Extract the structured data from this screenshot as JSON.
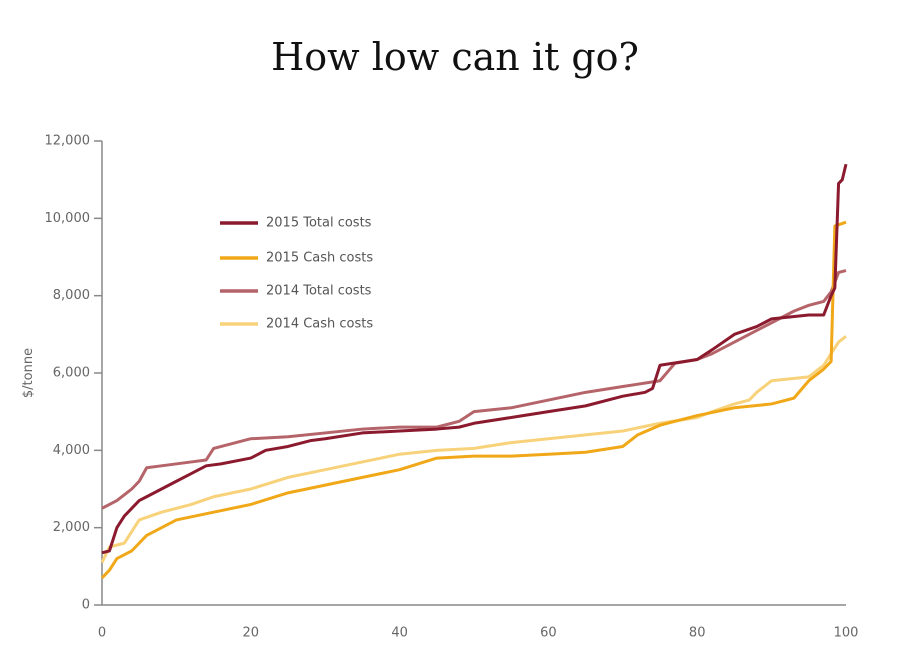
{
  "chart_data": {
    "type": "line",
    "title": "How low can it go?",
    "y_label": "$/tonne",
    "xlim": [
      0,
      100
    ],
    "xticks": [
      0,
      20,
      40,
      60,
      80,
      100
    ],
    "ylim": [
      0,
      12000
    ],
    "yticks": [
      0,
      {
        "value": 2000,
        "label": "2,000"
      },
      {
        "value": 4000,
        "label": "4,000"
      },
      {
        "value": 6000,
        "label": "6,000"
      },
      {
        "value": 8000,
        "label": "8,000"
      },
      {
        "value": 10000,
        "label": "10,000"
      },
      {
        "value": 12000,
        "label": "12,000"
      }
    ],
    "grid": false,
    "legend": "upper left",
    "series": [
      {
        "name": "2015 Total costs",
        "color": "#8b1a2e",
        "x": [
          0,
          1,
          2,
          3,
          4,
          5,
          6,
          8,
          10,
          12,
          14,
          16,
          20,
          22,
          25,
          28,
          30,
          35,
          40,
          45,
          48,
          50,
          55,
          60,
          65,
          70,
          73,
          74,
          75,
          80,
          82,
          85,
          88,
          90,
          95,
          97,
          98,
          98.5,
          99,
          99.5,
          100
        ],
        "values": [
          1350,
          1400,
          2000,
          2300,
          2500,
          2700,
          2800,
          3000,
          3200,
          3400,
          3600,
          3650,
          3800,
          4000,
          4100,
          4250,
          4300,
          4450,
          4500,
          4550,
          4600,
          4700,
          4850,
          5000,
          5150,
          5400,
          5500,
          5600,
          6200,
          6350,
          6600,
          7000,
          7200,
          7400,
          7500,
          7500,
          8000,
          8200,
          10900,
          11000,
          11400
        ]
      },
      {
        "name": "2015 Cash costs",
        "color": "#f0a818",
        "x": [
          0,
          1,
          2,
          4,
          5,
          6,
          8,
          10,
          15,
          20,
          25,
          30,
          35,
          40,
          45,
          50,
          55,
          60,
          65,
          70,
          72,
          75,
          80,
          85,
          90,
          93,
          95,
          97,
          98,
          98.5,
          100
        ],
        "values": [
          700,
          900,
          1200,
          1400,
          1600,
          1800,
          2000,
          2200,
          2400,
          2600,
          2900,
          3100,
          3300,
          3500,
          3800,
          3850,
          3850,
          3900,
          3950,
          4100,
          4400,
          4650,
          4900,
          5100,
          5200,
          5350,
          5800,
          6100,
          6300,
          9800,
          9900
        ]
      },
      {
        "name": "2014 Total costs",
        "color": "#b5646a",
        "x": [
          0,
          2,
          4,
          5,
          6,
          8,
          12,
          14,
          15,
          20,
          25,
          30,
          35,
          40,
          45,
          48,
          50,
          55,
          60,
          65,
          70,
          75,
          77,
          80,
          82,
          85,
          88,
          90,
          93,
          95,
          97,
          98,
          99,
          100
        ],
        "values": [
          2500,
          2700,
          3000,
          3200,
          3550,
          3600,
          3700,
          3750,
          4050,
          4300,
          4350,
          4450,
          4550,
          4600,
          4600,
          4750,
          5000,
          5100,
          5300,
          5500,
          5650,
          5800,
          6250,
          6350,
          6500,
          6800,
          7100,
          7300,
          7600,
          7750,
          7850,
          8100,
          8600,
          8650
        ]
      },
      {
        "name": "2014 Cash costs",
        "color": "#f8d27a",
        "x": [
          0,
          1,
          3,
          5,
          8,
          12,
          15,
          20,
          25,
          30,
          35,
          40,
          45,
          50,
          55,
          60,
          65,
          70,
          75,
          80,
          82,
          85,
          87,
          88,
          90,
          95,
          97,
          98,
          99,
          100
        ],
        "values": [
          1100,
          1500,
          1600,
          2200,
          2400,
          2600,
          2800,
          3000,
          3300,
          3500,
          3700,
          3900,
          4000,
          4050,
          4200,
          4300,
          4400,
          4500,
          4700,
          4850,
          5000,
          5200,
          5300,
          5500,
          5800,
          5900,
          6200,
          6500,
          6800,
          6950
        ]
      }
    ]
  }
}
